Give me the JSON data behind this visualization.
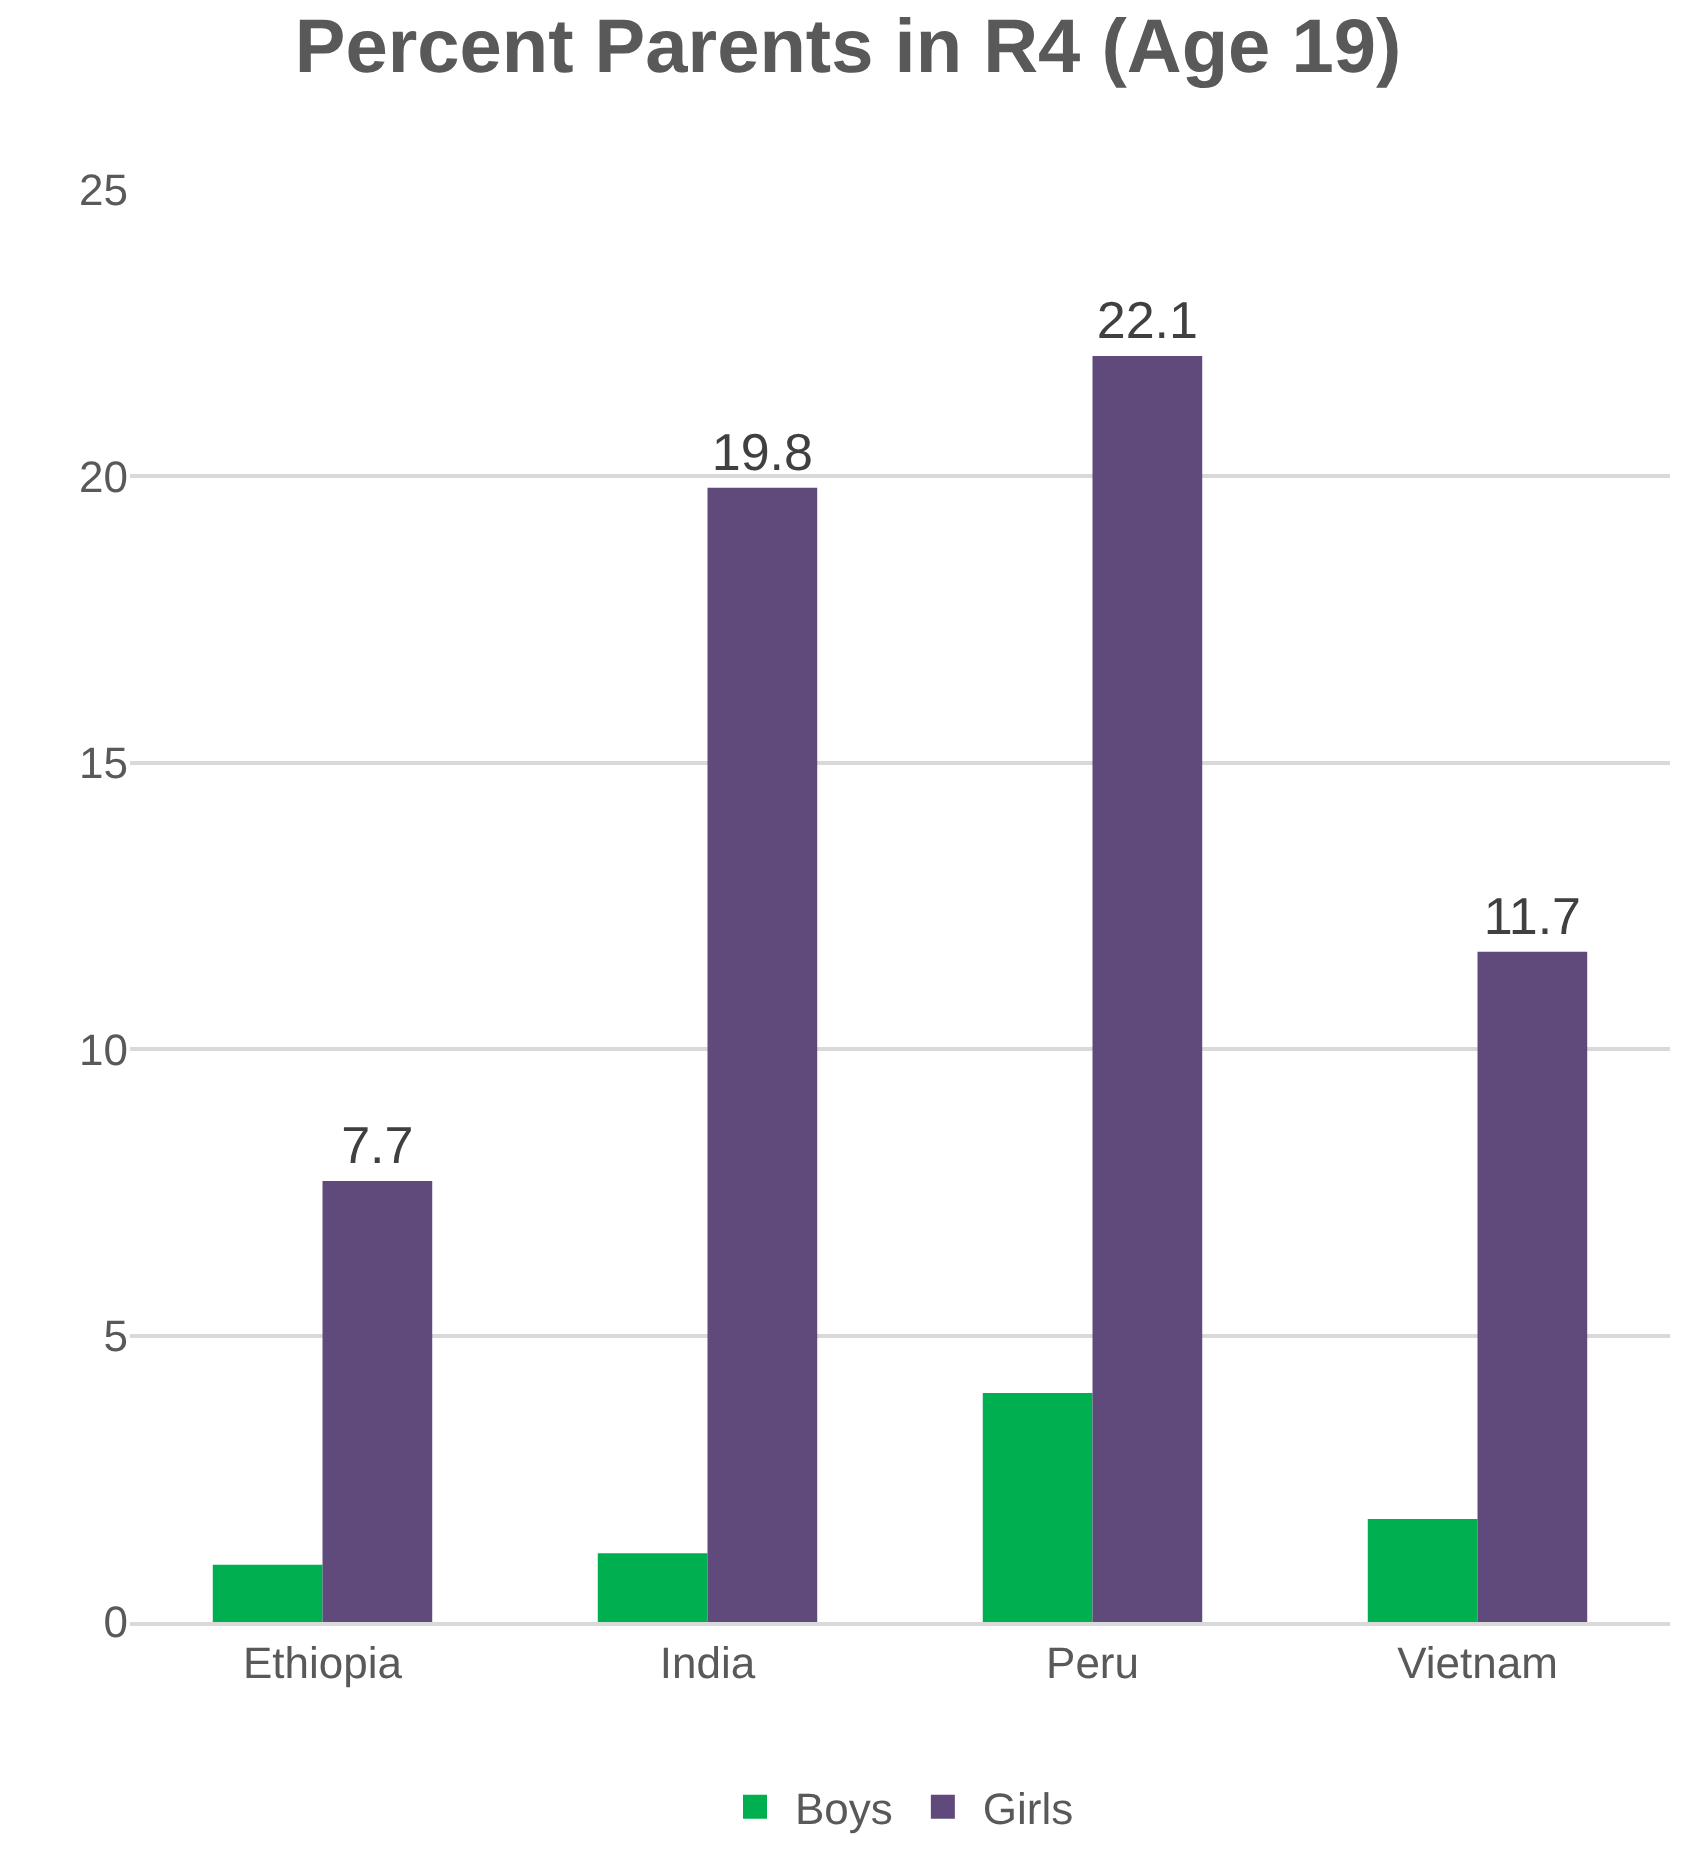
{
  "chart_data": {
    "type": "bar",
    "title": "Percent Parents in R4 (Age 19)",
    "categories": [
      "Ethiopia",
      "India",
      "Peru",
      "Vietnam"
    ],
    "series": [
      {
        "name": "Boys",
        "color": "#00b050",
        "values": [
          1.0,
          1.2,
          4.0,
          1.8
        ]
      },
      {
        "name": "Girls",
        "color": "#604a7b",
        "values": [
          7.7,
          19.8,
          22.1,
          11.7
        ],
        "value_labels": [
          "7.7",
          "19.8",
          "22.1",
          "11.7"
        ]
      }
    ],
    "ylim": [
      0,
      25
    ],
    "yticks": [
      0,
      5,
      10,
      15,
      20,
      25
    ],
    "grid": "y",
    "legend": "bottom"
  }
}
